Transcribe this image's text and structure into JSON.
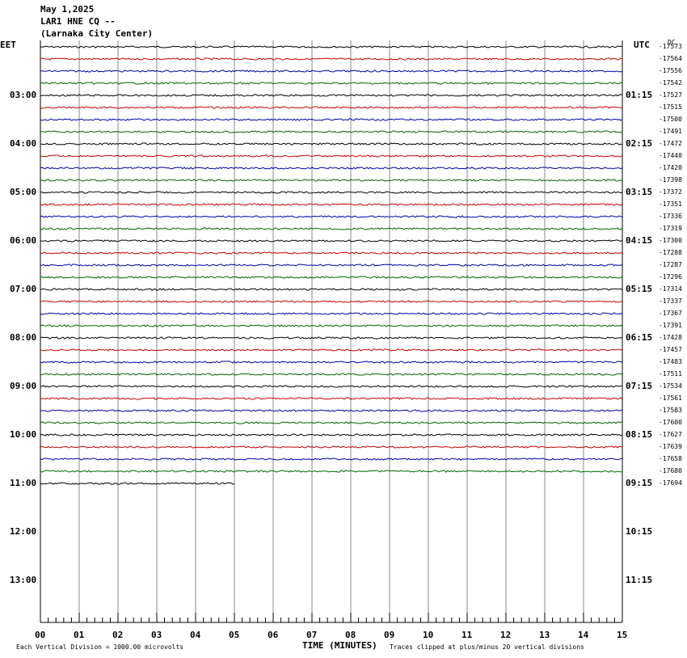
{
  "header": {
    "date": "May 1,2025",
    "station": "LAR1 HNE CQ --",
    "location": "(Larnaka City Center)"
  },
  "left_axis_label": "EET",
  "right_axis_label": "UTC",
  "dc_label": "DC",
  "footer": {
    "scale_note": "Each Vertical Division = 1000.00 microvolts",
    "xlabel": "TIME (MINUTES)",
    "clip_note": "Traces clipped at plus/minus 20 vertical divisions"
  },
  "colors": {
    "trace_cycle": [
      "#000000",
      "#cc0000",
      "#0000aa",
      "#006600"
    ],
    "grid": "#888888"
  },
  "chart_data": {
    "type": "line",
    "title": "LAR1 HNE CQ --",
    "xlabel": "TIME (MINUTES)",
    "xlim": [
      0,
      15
    ],
    "x_ticks": [
      "00",
      "01",
      "02",
      "03",
      "04",
      "05",
      "06",
      "07",
      "08",
      "09",
      "10",
      "11",
      "12",
      "13",
      "14",
      "15"
    ],
    "y_left_ticks": [
      "03:00",
      "04:00",
      "05:00",
      "06:00",
      "07:00",
      "08:00",
      "09:00",
      "10:00",
      "11:00",
      "12:00",
      "13:00"
    ],
    "y_right_ticks": [
      "01:15",
      "02:15",
      "03:15",
      "04:15",
      "05:15",
      "06:15",
      "07:15",
      "08:15",
      "09:15",
      "10:15",
      "11:15"
    ],
    "rows": 48,
    "trace_dc_offsets": [
      -17573,
      -17564,
      -17556,
      -17542,
      -17527,
      -17515,
      -17500,
      -17491,
      -17472,
      -17440,
      -17420,
      -17398,
      -17372,
      -17351,
      -17336,
      -17319,
      -17300,
      -17288,
      -17287,
      -17296,
      -17314,
      -17337,
      -17367,
      -17391,
      -17428,
      -17457,
      -17483,
      -17511,
      -17534,
      -17561,
      -17583,
      -17600,
      -17627,
      -17639,
      -17658,
      -17680,
      -17694
    ],
    "last_trace_end_minute": 5.0
  }
}
